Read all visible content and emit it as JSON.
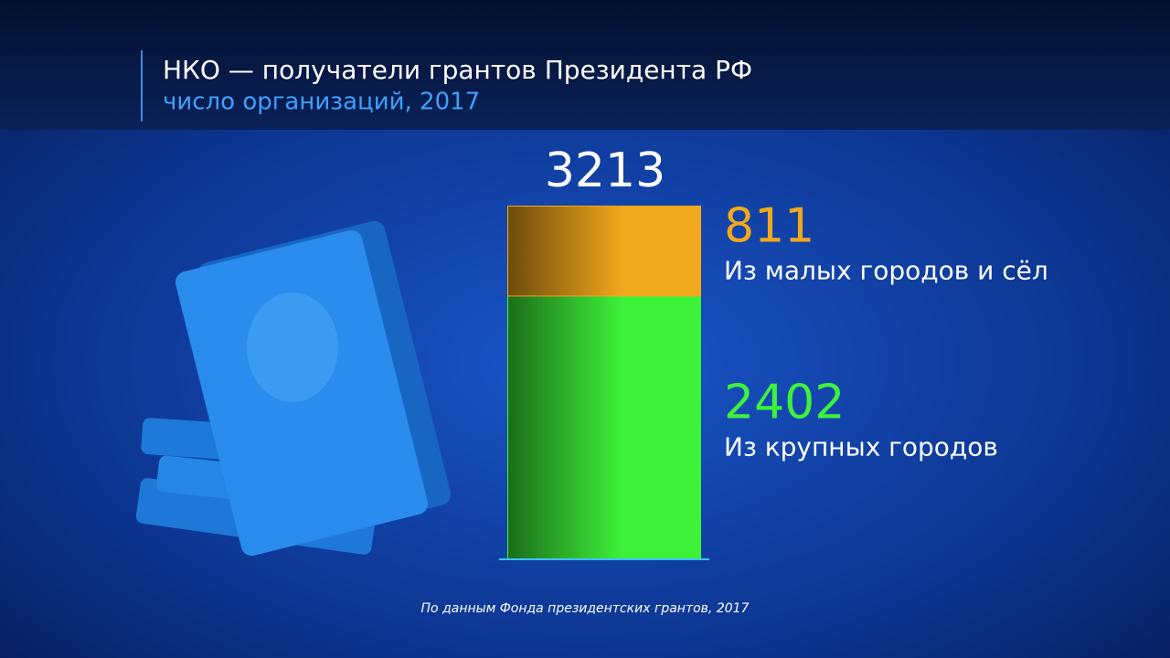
{
  "chart_data": {
    "type": "stacked-bar",
    "title": "НКО — получатели грантов Президента РФ",
    "subtitle": "число организаций, 2017",
    "total": 3213,
    "series": [
      {
        "name": "Из крупных городов",
        "color": "#3ef23a",
        "values": [
          2402
        ]
      },
      {
        "name": "Из малых городов и сёл",
        "color": "#f2a81c",
        "values": [
          811
        ]
      }
    ],
    "source": "По данным Фонда президентских грантов, 2017"
  }
}
